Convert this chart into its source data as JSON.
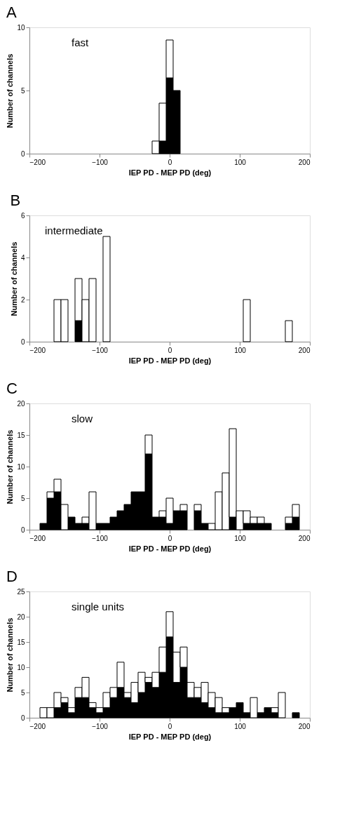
{
  "chart_data": [
    {
      "type": "bar",
      "title": "A",
      "annotations": [
        "fast"
      ],
      "xlabel": "IEP PD - MEP PD (deg)",
      "ylabel": "Number of channels",
      "x": [
        -180,
        -170,
        -160,
        -150,
        -140,
        -130,
        -120,
        -110,
        -100,
        -90,
        -80,
        -70,
        -60,
        -50,
        -40,
        -30,
        -20,
        -10,
        0,
        10,
        20,
        30,
        40,
        50,
        60,
        70,
        80,
        90,
        100,
        110,
        120,
        130,
        140,
        150,
        160,
        170,
        180
      ],
      "stacked": true,
      "series": [
        {
          "color": "#000000",
          "values": [
            0,
            0,
            0,
            0,
            0,
            0,
            0,
            0,
            0,
            0,
            0,
            0,
            0,
            0,
            0,
            0,
            0,
            1,
            6,
            5,
            0,
            0,
            0,
            0,
            0,
            0,
            0,
            0,
            0,
            0,
            0,
            0,
            0,
            0,
            0,
            0,
            0
          ]
        },
        {
          "color": "#ffffff",
          "values": [
            0,
            0,
            0,
            0,
            0,
            0,
            0,
            0,
            0,
            0,
            0,
            0,
            0,
            0,
            0,
            0,
            1,
            3,
            3,
            0,
            0,
            0,
            0,
            0,
            0,
            0,
            0,
            0,
            0,
            0,
            0,
            0,
            0,
            0,
            0,
            0,
            0
          ]
        }
      ],
      "xlim": [
        -200,
        200
      ],
      "xticks": [
        -200,
        -100,
        0,
        100,
        200
      ],
      "ylim": [
        0,
        10
      ],
      "yticks": [
        0,
        5,
        10
      ],
      "grid": false
    },
    {
      "type": "bar",
      "title": "B",
      "annotations": [
        "intermediate"
      ],
      "xlabel": "IEP PD - MEP PD (deg)",
      "ylabel": "Number of channels",
      "x": [
        -180,
        -170,
        -160,
        -150,
        -140,
        -130,
        -120,
        -110,
        -100,
        -90,
        -80,
        -70,
        -60,
        -50,
        -40,
        -30,
        -20,
        -10,
        0,
        10,
        20,
        30,
        40,
        50,
        60,
        70,
        80,
        90,
        100,
        110,
        120,
        130,
        140,
        150,
        160,
        170,
        180
      ],
      "stacked": true,
      "series": [
        {
          "color": "#000000",
          "values": [
            0,
            0,
            0,
            0,
            0,
            1,
            0,
            0,
            0,
            0,
            0,
            0,
            0,
            0,
            0,
            0,
            0,
            0,
            0,
            0,
            0,
            0,
            0,
            0,
            0,
            0,
            0,
            0,
            0,
            0,
            0,
            0,
            0,
            0,
            0,
            0,
            0
          ]
        },
        {
          "color": "#ffffff",
          "values": [
            0,
            0,
            2,
            2,
            0,
            2,
            2,
            3,
            0,
            5,
            0,
            0,
            0,
            0,
            0,
            0,
            0,
            0,
            0,
            0,
            0,
            0,
            0,
            0,
            0,
            0,
            0,
            0,
            0,
            2,
            0,
            0,
            0,
            0,
            0,
            1,
            0
          ]
        }
      ],
      "xlim": [
        -200,
        200
      ],
      "xticks": [
        -200,
        -100,
        0,
        100,
        200
      ],
      "ylim": [
        0,
        6
      ],
      "yticks": [
        0,
        2,
        4,
        6
      ],
      "grid": false
    },
    {
      "type": "bar",
      "title": "C",
      "annotations": [
        "slow"
      ],
      "xlabel": "IEP PD - MEP PD (deg)",
      "ylabel": "Number of channels",
      "x": [
        -180,
        -170,
        -160,
        -150,
        -140,
        -130,
        -120,
        -110,
        -100,
        -90,
        -80,
        -70,
        -60,
        -50,
        -40,
        -30,
        -20,
        -10,
        0,
        10,
        20,
        30,
        40,
        50,
        60,
        70,
        80,
        90,
        100,
        110,
        120,
        130,
        140,
        150,
        160,
        170,
        180
      ],
      "stacked": true,
      "series": [
        {
          "color": "#000000",
          "values": [
            1,
            5,
            6,
            0,
            2,
            1,
            1,
            0,
            1,
            1,
            2,
            3,
            4,
            6,
            6,
            12,
            2,
            2,
            1,
            3,
            3,
            0,
            3,
            1,
            0,
            0,
            0,
            2,
            0,
            1,
            1,
            1,
            1,
            0,
            0,
            1,
            2
          ]
        },
        {
          "color": "#ffffff",
          "values": [
            0,
            1,
            2,
            4,
            0,
            0,
            1,
            6,
            0,
            0,
            0,
            0,
            0,
            0,
            0,
            3,
            0,
            1,
            4,
            0,
            1,
            0,
            1,
            0,
            1,
            6,
            9,
            14,
            3,
            2,
            1,
            1,
            0,
            0,
            0,
            1,
            2
          ]
        }
      ],
      "xlim": [
        -200,
        200
      ],
      "xticks": [
        -200,
        -100,
        0,
        100,
        200
      ],
      "ylim": [
        0,
        20
      ],
      "yticks": [
        0,
        5,
        10,
        15,
        20
      ],
      "grid": false
    },
    {
      "type": "bar",
      "title": "D",
      "annotations": [
        "single units"
      ],
      "xlabel": "IEP PD - MEP PD (deg)",
      "ylabel": "Number of channels",
      "x": [
        -180,
        -170,
        -160,
        -150,
        -140,
        -130,
        -120,
        -110,
        -100,
        -90,
        -80,
        -70,
        -60,
        -50,
        -40,
        -30,
        -20,
        -10,
        0,
        10,
        20,
        30,
        40,
        50,
        60,
        70,
        80,
        90,
        100,
        110,
        120,
        130,
        140,
        150,
        160,
        170,
        180
      ],
      "stacked": true,
      "series": [
        {
          "color": "#000000",
          "values": [
            0,
            0,
            2,
            3,
            1,
            4,
            4,
            2,
            1,
            2,
            4,
            6,
            4,
            3,
            5,
            7,
            6,
            9,
            16,
            7,
            10,
            4,
            4,
            3,
            2,
            1,
            1,
            2,
            3,
            1,
            0,
            1,
            2,
            1,
            0,
            0,
            1
          ]
        },
        {
          "color": "#ffffff",
          "values": [
            2,
            2,
            3,
            1,
            1,
            2,
            4,
            1,
            1,
            3,
            2,
            5,
            1,
            4,
            4,
            1,
            3,
            5,
            5,
            6,
            4,
            3,
            2,
            4,
            3,
            3,
            1,
            0,
            0,
            0,
            4,
            0,
            0,
            1,
            5,
            0,
            0
          ]
        }
      ],
      "xlim": [
        -200,
        200
      ],
      "xticks": [
        -200,
        -100,
        0,
        100,
        200
      ],
      "ylim": [
        0,
        25
      ],
      "yticks": [
        0,
        5,
        10,
        15,
        20,
        25
      ],
      "grid": false
    }
  ]
}
